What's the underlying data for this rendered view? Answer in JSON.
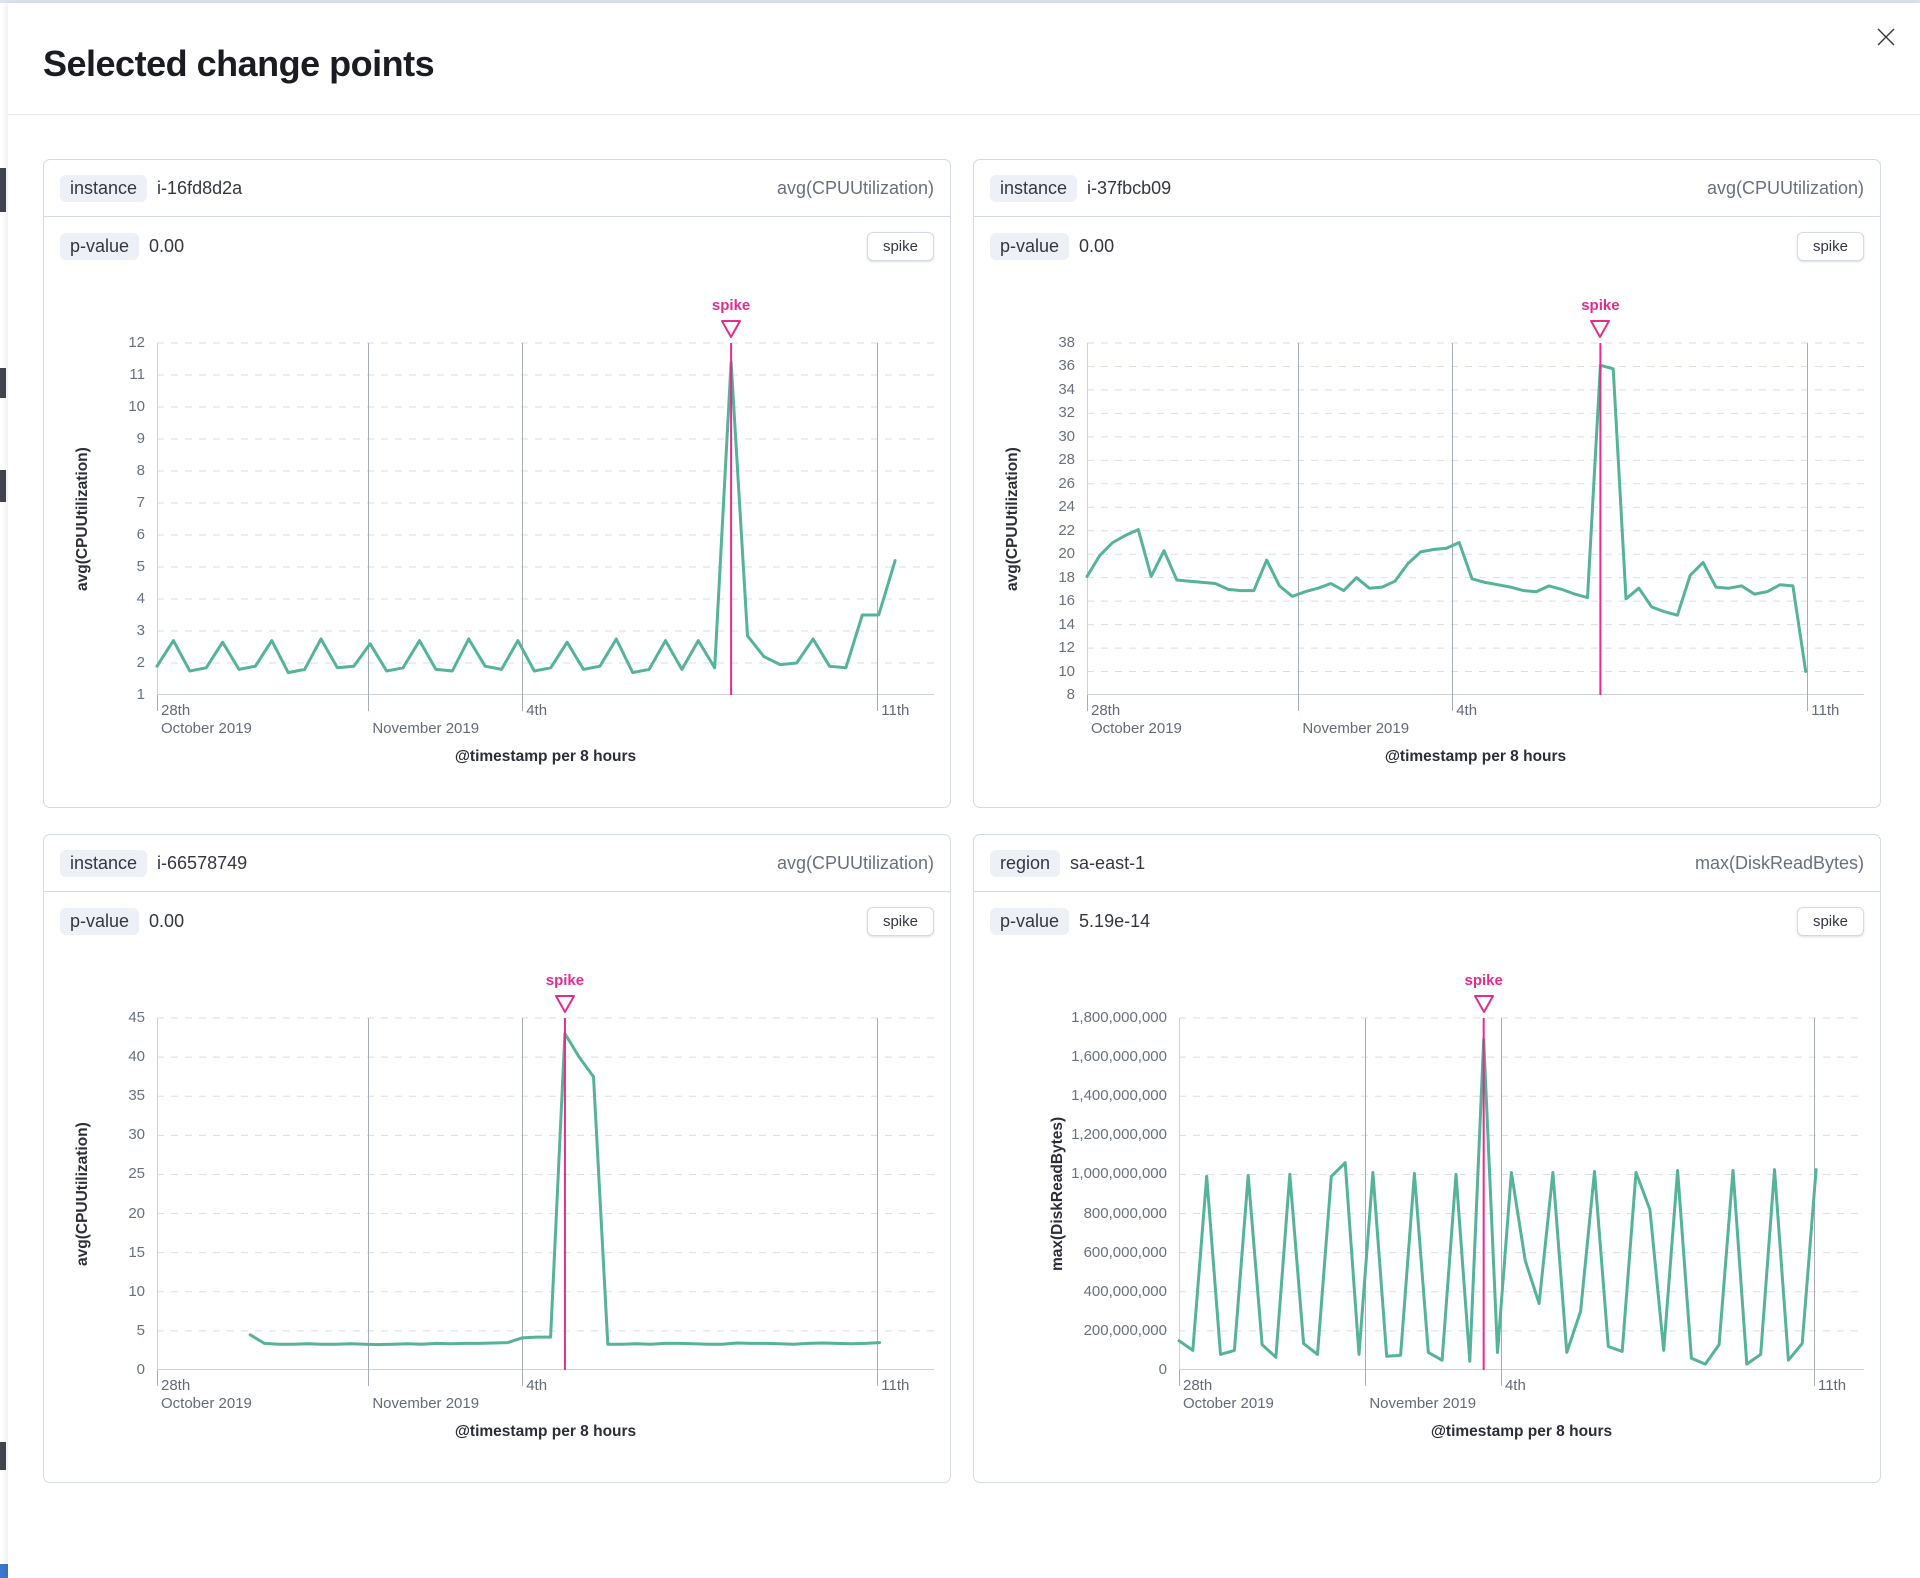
{
  "modal": {
    "title": "Selected change points",
    "close_icon": "x-close"
  },
  "colors": {
    "series_green": "#54B399",
    "annotation_pink": "#E32D8C",
    "vertical_grid": "#A6ACB8",
    "horizontal_grid": "#D9DEE8",
    "axis_line": "#CBD2DC",
    "text": "#343741",
    "subdued_text": "#69707D",
    "badge_bg": "#EDF0F6",
    "panel_border": "#D3DAE6"
  },
  "panels": [
    {
      "key_label": "instance",
      "key_value": "i-16fd8d2a",
      "agg_label": "avg(CPUUtilization)",
      "p_label": "p-value",
      "p_value": "0.00",
      "change_type": "spike"
    },
    {
      "key_label": "instance",
      "key_value": "i-37fbcb09",
      "agg_label": "avg(CPUUtilization)",
      "p_label": "p-value",
      "p_value": "0.00",
      "change_type": "spike"
    },
    {
      "key_label": "instance",
      "key_value": "i-66578749",
      "agg_label": "avg(CPUUtilization)",
      "p_label": "p-value",
      "p_value": "0.00",
      "change_type": "spike"
    },
    {
      "key_label": "region",
      "key_value": "sa-east-1",
      "agg_label": "max(DiskReadBytes)",
      "p_label": "p-value",
      "p_value": "5.19e-14",
      "change_type": "spike"
    }
  ],
  "chart_data": [
    {
      "type": "line",
      "ylabel": "avg(CPUUtilization)",
      "xlabel": "@timestamp per 8 hours",
      "ylim": [
        1,
        12
      ],
      "y_ticks": [
        "12",
        "11",
        "10",
        "9",
        "8",
        "7",
        "6",
        "5",
        "4",
        "3",
        "2",
        "1"
      ],
      "x_ticks": [
        {
          "frac": 0.0,
          "line1": "28th",
          "line2": "October 2019"
        },
        {
          "frac": 0.272,
          "line1": "",
          "line2": "November 2019"
        },
        {
          "frac": 0.47,
          "line1": "4th",
          "line2": ""
        },
        {
          "frac": 0.927,
          "line1": "11th",
          "line2": ""
        }
      ],
      "x_start_frac": 0.0,
      "x_end_frac": 0.95,
      "annotation": {
        "label": "spike",
        "at_index": 35
      },
      "values": [
        1.9,
        2.7,
        1.75,
        1.85,
        2.65,
        1.8,
        1.9,
        2.7,
        1.7,
        1.8,
        2.75,
        1.85,
        1.9,
        2.6,
        1.75,
        1.85,
        2.7,
        1.8,
        1.75,
        2.75,
        1.9,
        1.8,
        2.7,
        1.75,
        1.85,
        2.65,
        1.8,
        1.9,
        2.75,
        1.7,
        1.8,
        2.7,
        1.8,
        2.7,
        1.85,
        11.4,
        2.85,
        2.2,
        1.95,
        2.0,
        2.75,
        1.9,
        1.85,
        3.5,
        3.5,
        5.2
      ]
    },
    {
      "type": "line",
      "ylabel": "avg(CPUUtilization)",
      "xlabel": "@timestamp per 8 hours",
      "ylim": [
        8,
        38
      ],
      "y_ticks": [
        "38",
        "36",
        "34",
        "32",
        "30",
        "28",
        "26",
        "24",
        "22",
        "20",
        "18",
        "16",
        "14",
        "12",
        "10",
        "8"
      ],
      "x_ticks": [
        {
          "frac": 0.0,
          "line1": "28th",
          "line2": "October 2019"
        },
        {
          "frac": 0.272,
          "line1": "",
          "line2": "November 2019"
        },
        {
          "frac": 0.47,
          "line1": "4th",
          "line2": ""
        },
        {
          "frac": 0.927,
          "line1": "11th",
          "line2": ""
        }
      ],
      "x_start_frac": 0.0,
      "x_end_frac": 0.925,
      "annotation": {
        "label": "spike",
        "at_index": 40
      },
      "values": [
        18.1,
        19.9,
        21.0,
        21.6,
        22.1,
        18.1,
        20.3,
        17.8,
        17.7,
        17.6,
        17.5,
        17.0,
        16.9,
        16.9,
        19.5,
        17.3,
        16.4,
        16.8,
        17.1,
        17.5,
        16.9,
        18.0,
        17.1,
        17.2,
        17.7,
        19.2,
        20.2,
        20.4,
        20.5,
        21.0,
        17.9,
        17.6,
        17.4,
        17.2,
        16.9,
        16.8,
        17.3,
        17.0,
        16.6,
        16.3,
        36.1,
        35.8,
        16.2,
        17.1,
        15.5,
        15.1,
        14.8,
        18.2,
        19.3,
        17.2,
        17.1,
        17.3,
        16.6,
        16.8,
        17.4,
        17.3,
        10.0
      ]
    },
    {
      "type": "line",
      "ylabel": "avg(CPUUtilization)",
      "xlabel": "@timestamp per 8 hours",
      "ylim": [
        0,
        45
      ],
      "y_ticks": [
        "45",
        "40",
        "35",
        "30",
        "25",
        "20",
        "15",
        "10",
        "5",
        "0"
      ],
      "x_ticks": [
        {
          "frac": 0.0,
          "line1": "28th",
          "line2": "October 2019"
        },
        {
          "frac": 0.272,
          "line1": "",
          "line2": "November 2019"
        },
        {
          "frac": 0.47,
          "line1": "4th",
          "line2": ""
        },
        {
          "frac": 0.927,
          "line1": "11th",
          "line2": ""
        }
      ],
      "x_start_frac": 0.12,
      "x_end_frac": 0.93,
      "annotation": {
        "label": "spike",
        "at_index": 22
      },
      "values": [
        4.5,
        3.4,
        3.3,
        3.3,
        3.35,
        3.3,
        3.3,
        3.35,
        3.3,
        3.25,
        3.3,
        3.35,
        3.3,
        3.4,
        3.35,
        3.4,
        3.4,
        3.45,
        3.5,
        4.1,
        4.2,
        4.2,
        43.0,
        40.0,
        37.5,
        3.3,
        3.3,
        3.35,
        3.3,
        3.4,
        3.4,
        3.35,
        3.3,
        3.3,
        3.45,
        3.4,
        3.4,
        3.35,
        3.3,
        3.4,
        3.45,
        3.4,
        3.35,
        3.4,
        3.5
      ]
    },
    {
      "type": "line",
      "ylabel": "max(DiskReadBytes)",
      "xlabel": "@timestamp per 8 hours",
      "ylim": [
        0,
        1800000000
      ],
      "y_ticks": [
        "1,800,000,000",
        "1,600,000,000",
        "1,400,000,000",
        "1,200,000,000",
        "1,000,000,000",
        "800,000,000",
        "600,000,000",
        "400,000,000",
        "200,000,000",
        "0"
      ],
      "x_ticks": [
        {
          "frac": 0.0,
          "line1": "28th",
          "line2": "October 2019"
        },
        {
          "frac": 0.272,
          "line1": "",
          "line2": "November 2019"
        },
        {
          "frac": 0.47,
          "line1": "4th",
          "line2": ""
        },
        {
          "frac": 0.927,
          "line1": "11th",
          "line2": ""
        }
      ],
      "x_start_frac": 0.0,
      "x_end_frac": 0.93,
      "annotation": {
        "label": "spike",
        "at_index": 22
      },
      "values": [
        150000000,
        100000000,
        990000000,
        80000000,
        100000000,
        995000000,
        130000000,
        65000000,
        1000000000,
        135000000,
        80000000,
        990000000,
        1060000000,
        80000000,
        1010000000,
        70000000,
        75000000,
        1005000000,
        90000000,
        50000000,
        1000000000,
        45000000,
        1690000000,
        90000000,
        1010000000,
        560000000,
        340000000,
        1010000000,
        90000000,
        300000000,
        1015000000,
        120000000,
        95000000,
        1010000000,
        820000000,
        100000000,
        1020000000,
        60000000,
        30000000,
        130000000,
        1020000000,
        30000000,
        80000000,
        1025000000,
        50000000,
        135000000,
        1025000000
      ]
    }
  ]
}
